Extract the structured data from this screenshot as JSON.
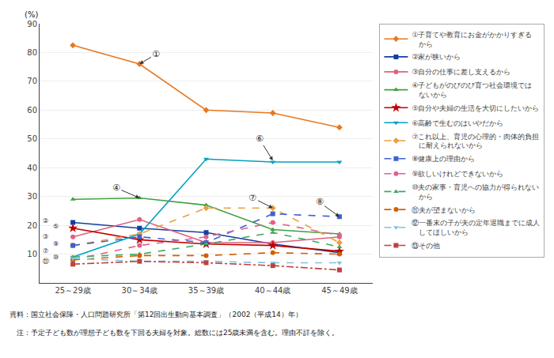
{
  "chart_data": {
    "type": "line",
    "ylabel": "(%)",
    "categories": [
      "25～29歳",
      "30～34歳",
      "35～39歳",
      "40～44歳",
      "45～49歳"
    ],
    "ylim": [
      0,
      90
    ],
    "yticks": [
      10,
      20,
      30,
      40,
      50,
      60,
      70,
      80,
      90
    ],
    "grid": true,
    "legend": "right",
    "series": [
      {
        "name": "①子育てや教育にお金がかかりすぎる\n　から",
        "values": [
          82.5,
          76.0,
          60.0,
          59.0,
          54.0
        ],
        "color": "#e87820",
        "marker": "diamond",
        "line_style": "solid"
      },
      {
        "name": "②家が狭いから",
        "values": [
          21.0,
          19.0,
          17.5,
          13.5,
          10.5
        ],
        "color": "#1040a0",
        "marker": "square",
        "line_style": "solid"
      },
      {
        "name": "③自分の仕事に差し支えるから",
        "values": [
          16.0,
          22.0,
          14.0,
          14.0,
          16.0
        ],
        "color": "#e06080",
        "marker": "circle",
        "line_style": "solid"
      },
      {
        "name": "④子どもがのびのび育つ社会環境では\n　ないから",
        "values": [
          29.0,
          29.5,
          27.0,
          18.5,
          17.0
        ],
        "color": "#40a040",
        "marker": "triangle-up",
        "line_style": "solid"
      },
      {
        "name": "⑤自分や夫婦の生活を大切にしたいから",
        "values": [
          19.0,
          15.0,
          13.5,
          13.0,
          11.0
        ],
        "color": "#c00000",
        "marker": "star",
        "line_style": "solid"
      },
      {
        "name": "⑥高齢で生むのはいやだから",
        "values": [
          9.0,
          17.0,
          43.0,
          42.0,
          42.0
        ],
        "color": "#00a0c0",
        "marker": "triangle-down",
        "line_style": "solid"
      },
      {
        "name": "⑦これ以上、育児の心理的・肉体的負担\n　に耐えられないから",
        "values": [
          13.0,
          17.0,
          26.0,
          26.0,
          14.0
        ],
        "color": "#e8a040",
        "marker": "diamond",
        "line_style": "dashed"
      },
      {
        "name": "⑧健康上の理由から",
        "values": [
          13.0,
          16.0,
          14.0,
          24.0,
          23.0
        ],
        "color": "#4060d0",
        "marker": "square",
        "line_style": "dashed"
      },
      {
        "name": "⑨欲しいけれどできないから",
        "values": [
          8.0,
          13.0,
          16.0,
          21.0,
          16.5
        ],
        "color": "#e06090",
        "marker": "circle",
        "line_style": "dashed"
      },
      {
        "name": "⑩夫の家事・育児への協力が得られない\n　から",
        "values": [
          9.0,
          10.0,
          13.5,
          17.5,
          12.5
        ],
        "color": "#40a860",
        "marker": "triangle-up",
        "line_style": "dashed"
      },
      {
        "name": "⑪夫が望まないから",
        "values": [
          8.0,
          9.5,
          9.5,
          10.5,
          10.0
        ],
        "color": "#d06000",
        "marker": "circle",
        "line_style": "dashed"
      },
      {
        "name": "⑫一番末の子が夫の定年退職までに成人\n　してほしいから",
        "values": [
          8.5,
          7.5,
          7.5,
          7.0,
          7.0
        ],
        "color": "#80c0e0",
        "marker": "triangle-down",
        "line_style": "dashed"
      },
      {
        "name": "⑬その他",
        "values": [
          6.5,
          7.5,
          7.0,
          6.0,
          4.5
        ],
        "color": "#c04040",
        "marker": "square",
        "line_style": "dashdot"
      }
    ],
    "annotations": [
      {
        "text": "①",
        "x": 1,
        "y": 76.0,
        "text_x": 1.25,
        "text_y": 79.5
      },
      {
        "text": "④",
        "x": 1,
        "y": 29.5,
        "text_x": 0.65,
        "text_y": 33.0
      },
      {
        "text": "⑥",
        "x": 3,
        "y": 42.5,
        "text_x": 2.8,
        "text_y": 50.0
      },
      {
        "text": "⑦",
        "x": 3,
        "y": 26.0,
        "text_x": 2.7,
        "text_y": 29.5
      },
      {
        "text": "⑧",
        "x": 4,
        "y": 23.0,
        "text_x": 3.7,
        "text_y": 28.0
      },
      {
        "text": "②",
        "y": 21.5
      },
      {
        "text": "⑤",
        "y": 19.5
      },
      {
        "text": "③",
        "y": 16.0
      },
      {
        "text": "⑨",
        "y": 13.5
      },
      {
        "text": "⑦",
        "y": 11.0
      },
      {
        "text": "⑩",
        "y": 9.0
      },
      {
        "text": "⑪",
        "y": 7.5
      }
    ],
    "source": [
      "資料：国立社会保障・人口問題研究所「第12回出生動向基本調査」（2002（平成14）年）",
      "　注：予定子ども数が理想子ども数を下回る夫婦を対象。総数には25歳未満を含む。理由不詳を除く。"
    ]
  }
}
